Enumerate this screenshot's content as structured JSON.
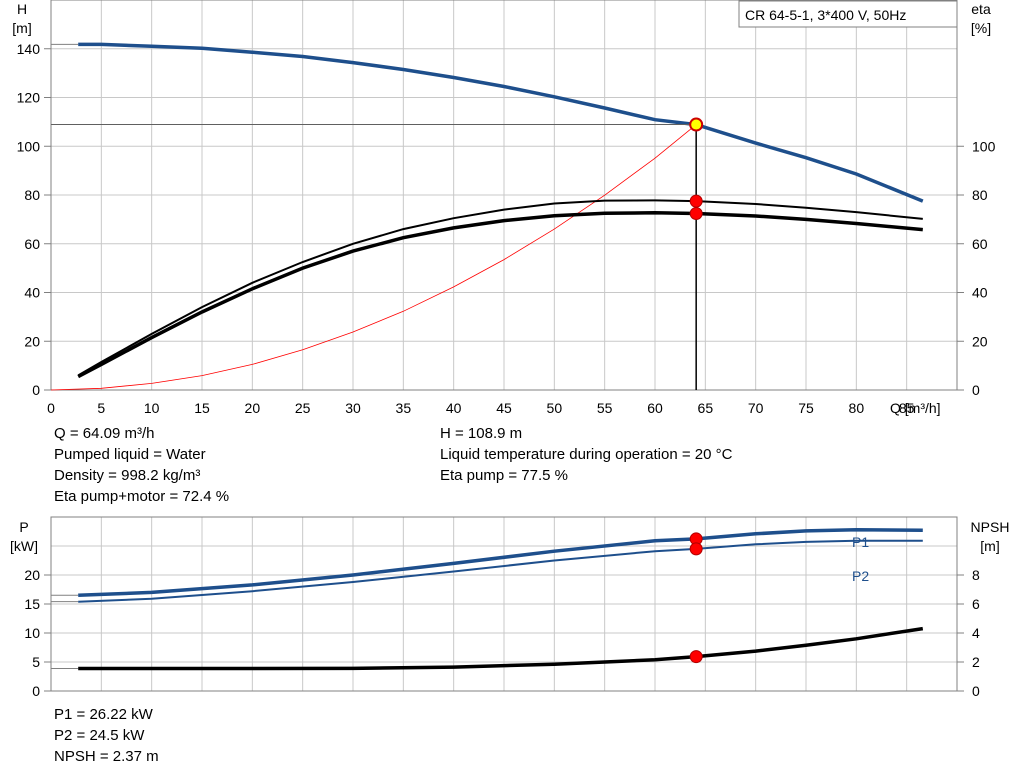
{
  "chart_data": [
    {
      "type": "line",
      "title": "CR 64-5-1, 3*400 V, 50Hz",
      "xlabel": "Q [m³/h]",
      "ylabel_left": [
        "H",
        "[m]"
      ],
      "ylabel_right": [
        "eta",
        "[%]"
      ],
      "xlim": [
        0,
        90
      ],
      "ylim_left": [
        0,
        160
      ],
      "ylim_right": [
        0,
        160
      ],
      "x_ticks": [
        0,
        5,
        10,
        15,
        20,
        25,
        30,
        35,
        40,
        45,
        50,
        55,
        60,
        65,
        70,
        75,
        80,
        85
      ],
      "y_ticks_left": [
        0,
        20,
        40,
        60,
        80,
        100,
        120,
        140
      ],
      "y_ticks_right": [
        0,
        20,
        40,
        60,
        80,
        100
      ],
      "grid": true,
      "series": [
        {
          "key": "H",
          "color": "#1e4f8c",
          "x": [
            2.7,
            5,
            10,
            15,
            20,
            25,
            30,
            35,
            40,
            45,
            50,
            55,
            60,
            64.09,
            70,
            75,
            80,
            86.6
          ],
          "y": [
            141.8,
            141.8,
            141.0,
            140.2,
            138.6,
            136.8,
            134.3,
            131.5,
            128.2,
            124.5,
            120.3,
            115.7,
            110.9,
            108.9,
            101.3,
            95.3,
            88.6,
            77.5
          ]
        },
        {
          "key": "eta_pump",
          "color": "#000000",
          "x": [
            2.7,
            5,
            10,
            15,
            20,
            25,
            30,
            35,
            40,
            45,
            50,
            55,
            60,
            64.09,
            70,
            75,
            80,
            86.6
          ],
          "y": [
            6,
            11.5,
            23,
            34,
            44,
            52.5,
            60,
            66,
            70.5,
            74,
            76.5,
            77.7,
            77.8,
            77.5,
            76.3,
            74.8,
            73,
            70.2
          ]
        },
        {
          "key": "eta_pump_motor",
          "color": "#000000",
          "x": [
            2.7,
            5,
            10,
            15,
            20,
            25,
            30,
            35,
            40,
            45,
            50,
            55,
            60,
            64.09,
            70,
            75,
            80,
            86.6
          ],
          "y": [
            5.5,
            10.5,
            21.5,
            32,
            41.5,
            50,
            57,
            62.5,
            66.5,
            69.5,
            71.5,
            72.5,
            72.7,
            72.4,
            71.4,
            70,
            68.3,
            65.8
          ]
        },
        {
          "key": "system_curve",
          "color": "#ff0000",
          "x": [
            0,
            5,
            10,
            15,
            20,
            25,
            30,
            35,
            40,
            45,
            50,
            55,
            60,
            64.09
          ],
          "y": [
            0,
            0.7,
            2.7,
            5.9,
            10.5,
            16.5,
            23.8,
            32.3,
            42.3,
            53.5,
            66,
            79.9,
            95.1,
            108.9
          ]
        }
      ],
      "operating_point": {
        "x": 64.09,
        "H": 108.9,
        "eta_pump": 77.5,
        "eta_pump_motor": 72.4
      }
    },
    {
      "type": "line",
      "xlim": [
        0,
        90
      ],
      "ylabel_left": [
        "P",
        "[kW]"
      ],
      "ylabel_right": [
        "NPSH",
        "[m]"
      ],
      "ylim_left": [
        0,
        30
      ],
      "ylim_right": [
        0,
        12
      ],
      "y_ticks_left": [
        0,
        5,
        10,
        15,
        20
      ],
      "y_ticks_right": [
        0,
        2,
        4,
        6,
        8
      ],
      "grid": true,
      "series": [
        {
          "key": "P1",
          "name": "P1",
          "color": "#1e4f8c",
          "axis": "left",
          "x": [
            2.7,
            10,
            20,
            30,
            40,
            50,
            60,
            64.09,
            70,
            75,
            80,
            86.6
          ],
          "y": [
            16.5,
            17,
            18.3,
            20,
            22,
            24.1,
            25.9,
            26.22,
            27.1,
            27.6,
            27.8,
            27.7
          ]
        },
        {
          "key": "P2",
          "name": "P2",
          "color": "#1e4f8c",
          "axis": "left",
          "x": [
            2.7,
            10,
            20,
            30,
            40,
            50,
            60,
            64.09,
            70,
            75,
            80,
            86.6
          ],
          "y": [
            15.4,
            15.9,
            17.2,
            18.8,
            20.6,
            22.5,
            24.1,
            24.5,
            25.3,
            25.7,
            25.9,
            25.9
          ]
        },
        {
          "key": "NPSH",
          "color": "#000000",
          "axis": "right",
          "x": [
            2.7,
            10,
            20,
            30,
            40,
            50,
            60,
            64.09,
            70,
            75,
            80,
            86.6
          ],
          "y": [
            1.55,
            1.55,
            1.55,
            1.56,
            1.65,
            1.85,
            2.15,
            2.37,
            2.75,
            3.15,
            3.6,
            4.3
          ]
        }
      ],
      "operating_point": {
        "x": 64.09,
        "P1": 26.22,
        "P2": 24.5,
        "NPSH": 2.37
      }
    }
  ],
  "info_upper": {
    "left": [
      "Q = 64.09 m³/h",
      "Pumped liquid = Water",
      "Density = 998.2 kg/m³",
      "Eta pump+motor = 72.4 %"
    ],
    "right": [
      "H = 108.9 m",
      "Liquid temperature during operation = 20 °C",
      "Eta pump = 77.5 %"
    ]
  },
  "info_lower": [
    "P1 = 26.22 kW",
    "P2 = 24.5 kW",
    "NPSH = 2.37 m"
  ]
}
